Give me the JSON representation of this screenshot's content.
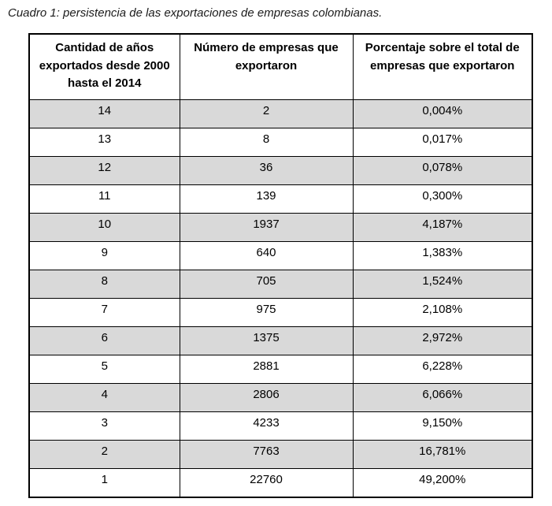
{
  "caption": "Cuadro 1: persistencia de las exportaciones de empresas colombianas.",
  "table": {
    "columns": [
      "Cantidad de años exportados desde 2000 hasta el 2014",
      "Número de empresas que exportaron",
      "Porcentaje sobre el total de empresas que exportaron"
    ],
    "rows": [
      [
        "14",
        "2",
        "0,004%"
      ],
      [
        "13",
        "8",
        "0,017%"
      ],
      [
        "12",
        "36",
        "0,078%"
      ],
      [
        "11",
        "139",
        "0,300%"
      ],
      [
        "10",
        "1937",
        "4,187%"
      ],
      [
        "9",
        "640",
        "1,383%"
      ],
      [
        "8",
        "705",
        "1,524%"
      ],
      [
        "7",
        "975",
        "2,108%"
      ],
      [
        "6",
        "1375",
        "2,972%"
      ],
      [
        "5",
        "2881",
        "6,228%"
      ],
      [
        "4",
        "2806",
        "6,066%"
      ],
      [
        "3",
        "4233",
        "9,150%"
      ],
      [
        "2",
        "7763",
        "16,781%"
      ],
      [
        "1",
        "22760",
        "49,200%"
      ]
    ],
    "colors": {
      "row_shade": "#d9d9d9",
      "border": "#000000",
      "header_background": "#ffffff",
      "text": "#000000"
    }
  }
}
